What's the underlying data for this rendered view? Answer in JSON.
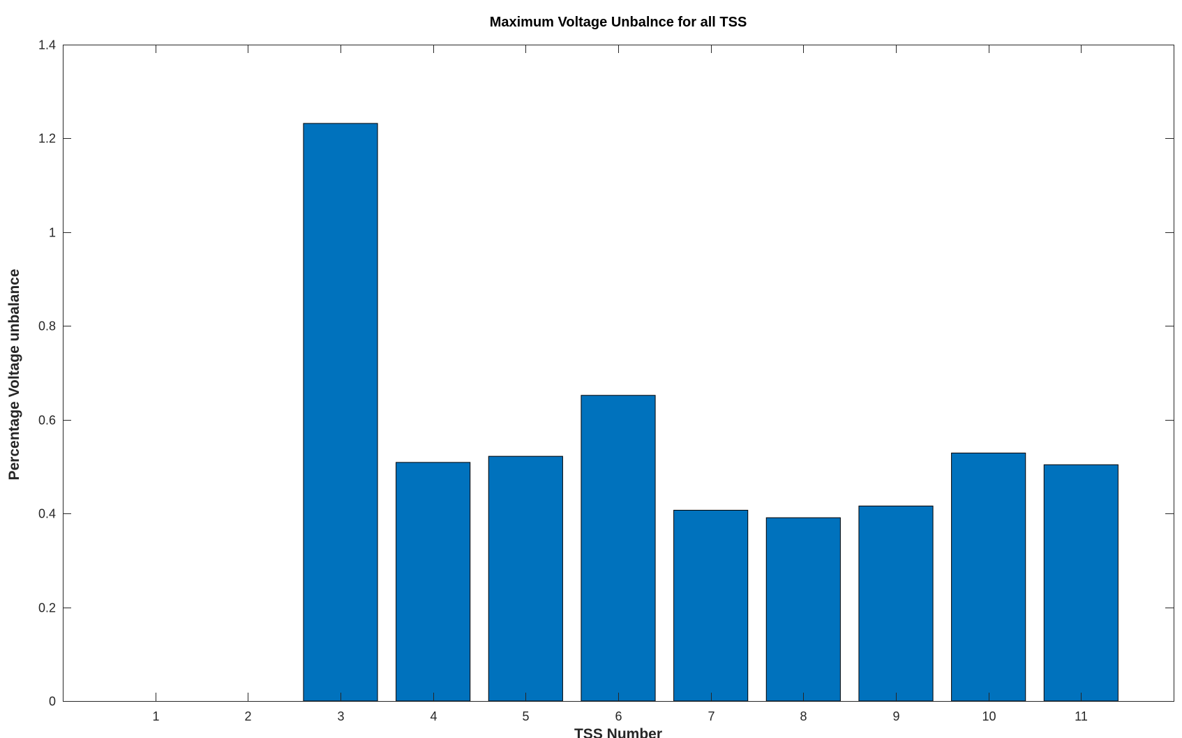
{
  "chart_data": {
    "type": "bar",
    "title": "Maximum Voltage Unbalnce for all TSS",
    "xlabel": "TSS Number",
    "ylabel": "Percentage Voltage unbalance",
    "categories": [
      "1",
      "2",
      "3",
      "4",
      "5",
      "6",
      "7",
      "8",
      "9",
      "10",
      "11"
    ],
    "values": [
      0,
      0,
      1.232,
      0.509,
      0.522,
      0.652,
      0.407,
      0.391,
      0.416,
      0.529,
      0.504
    ],
    "xlim": [
      0,
      12
    ],
    "ylim": [
      0,
      1.4
    ],
    "yticks": [
      "0",
      "0.2",
      "0.4",
      "0.6",
      "0.8",
      "1",
      "1.2",
      "1.4"
    ],
    "ytick_values": [
      0,
      0.2,
      0.4,
      0.6,
      0.8,
      1.0,
      1.2,
      1.4
    ],
    "bar_color": "#0072BD",
    "grid": false,
    "legend": null
  }
}
